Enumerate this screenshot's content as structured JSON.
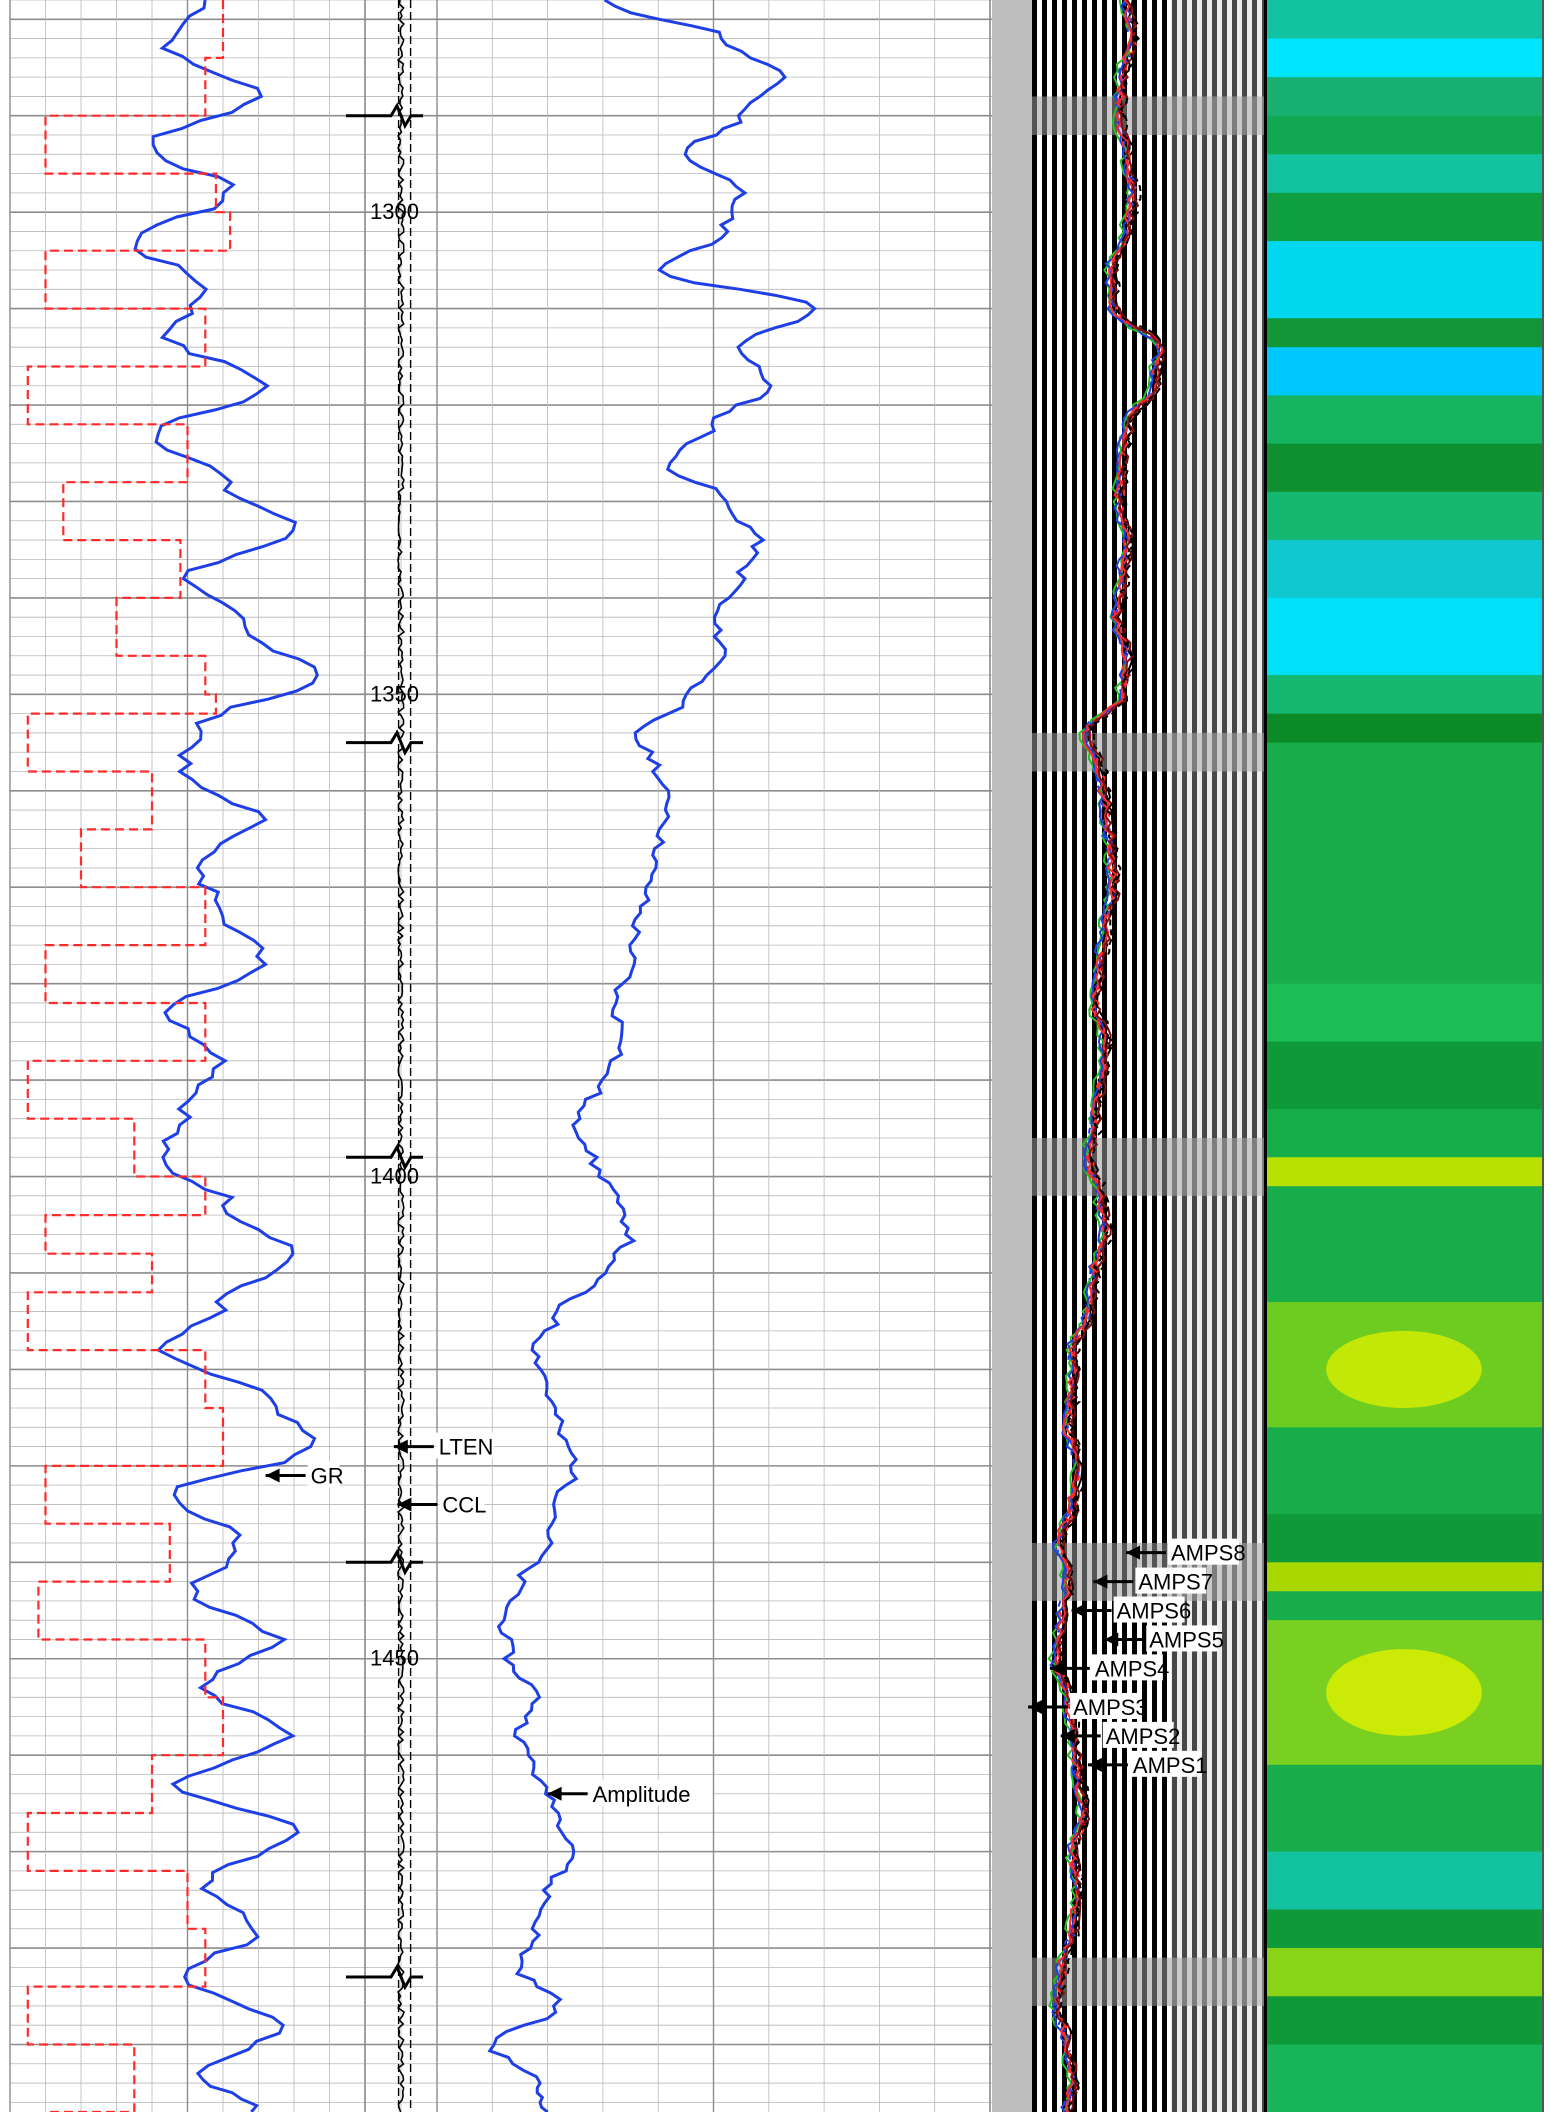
{
  "chart_data": {
    "type": "line",
    "title": "",
    "xlabel": "",
    "ylabel": "",
    "depth_ticks": [
      "1300",
      "1350",
      "1400",
      "1450"
    ],
    "depth_tick_values": [
      1300,
      1350,
      1400,
      1450
    ],
    "ylim": [
      1278,
      1497
    ],
    "grid": true,
    "tracks": [
      {
        "name": "track-1",
        "curves": [
          {
            "name": "GR",
            "color": "#1f3fe6",
            "style": "solid",
            "depths": [
              1278,
              1283,
              1288,
              1293,
              1298,
              1303,
              1308,
              1313,
              1318,
              1323,
              1328,
              1333,
              1338,
              1343,
              1348,
              1353,
              1358,
              1363,
              1368,
              1373,
              1378,
              1383,
              1388,
              1393,
              1398,
              1403,
              1408,
              1413,
              1418,
              1423,
              1428,
              1433,
              1438,
              1443,
              1448,
              1453,
              1458,
              1463,
              1468,
              1473,
              1478,
              1483,
              1488,
              1493,
              1497
            ],
            "values": [
              0.55,
              0.45,
              0.7,
              0.4,
              0.62,
              0.35,
              0.55,
              0.45,
              0.72,
              0.42,
              0.6,
              0.8,
              0.5,
              0.65,
              0.88,
              0.55,
              0.48,
              0.7,
              0.52,
              0.62,
              0.72,
              0.45,
              0.6,
              0.5,
              0.42,
              0.62,
              0.8,
              0.6,
              0.42,
              0.72,
              0.85,
              0.45,
              0.65,
              0.52,
              0.75,
              0.55,
              0.78,
              0.48,
              0.82,
              0.55,
              0.7,
              0.5,
              0.75,
              0.55,
              0.68
            ]
          },
          {
            "name": "",
            "color": "#ff2a2a",
            "style": "dashed",
            "depths": [
              1278,
              1284,
              1290,
              1296,
              1300,
              1304,
              1310,
              1316,
              1322,
              1328,
              1334,
              1340,
              1346,
              1350,
              1352,
              1358,
              1364,
              1370,
              1376,
              1382,
              1388,
              1394,
              1400,
              1404,
              1408,
              1412,
              1418,
              1424,
              1430,
              1436,
              1442,
              1448,
              1454,
              1460,
              1466,
              1472,
              1478,
              1484,
              1490,
              1497
            ],
            "values": [
              0.6,
              0.55,
              0.1,
              0.58,
              0.62,
              0.1,
              0.55,
              0.05,
              0.5,
              0.15,
              0.48,
              0.3,
              0.55,
              0.58,
              0.05,
              0.4,
              0.2,
              0.55,
              0.1,
              0.55,
              0.05,
              0.35,
              0.55,
              0.1,
              0.4,
              0.05,
              0.55,
              0.6,
              0.1,
              0.45,
              0.08,
              0.55,
              0.6,
              0.4,
              0.05,
              0.5,
              0.55,
              0.05,
              0.35,
              0.1
            ]
          }
        ]
      },
      {
        "name": "track-2",
        "curves": [
          {
            "name": "LTEN",
            "color": "#000000",
            "style": "dashed",
            "values": [
              0.55
            ]
          },
          {
            "name": "CCL",
            "color": "#000000",
            "style": "solid",
            "values": [
              0.5
            ],
            "collar_depths": [
              1290,
              1355,
              1398,
              1440,
              1483
            ]
          }
        ]
      },
      {
        "name": "track-3",
        "curves": [
          {
            "name": "Amplitude",
            "color": "#1f3fe6",
            "style": "solid",
            "depths": [
              1278,
              1282,
              1286,
              1290,
              1294,
              1298,
              1302,
              1306,
              1310,
              1314,
              1318,
              1322,
              1326,
              1330,
              1334,
              1338,
              1342,
              1346,
              1350,
              1354,
              1358,
              1362,
              1366,
              1370,
              1374,
              1378,
              1382,
              1386,
              1390,
              1394,
              1398,
              1402,
              1406,
              1410,
              1414,
              1418,
              1422,
              1426,
              1430,
              1434,
              1438,
              1442,
              1446,
              1450,
              1454,
              1458,
              1462,
              1466,
              1470,
              1474,
              1478,
              1482,
              1486,
              1490,
              1494,
              1497
            ],
            "values": [
              0.3,
              0.52,
              0.62,
              0.55,
              0.45,
              0.55,
              0.52,
              0.4,
              0.68,
              0.55,
              0.6,
              0.5,
              0.42,
              0.52,
              0.58,
              0.55,
              0.5,
              0.52,
              0.46,
              0.36,
              0.4,
              0.42,
              0.4,
              0.38,
              0.36,
              0.35,
              0.32,
              0.34,
              0.3,
              0.25,
              0.28,
              0.32,
              0.35,
              0.3,
              0.22,
              0.18,
              0.2,
              0.22,
              0.25,
              0.22,
              0.2,
              0.15,
              0.12,
              0.13,
              0.18,
              0.15,
              0.18,
              0.22,
              0.25,
              0.2,
              0.18,
              0.15,
              0.22,
              0.1,
              0.18,
              0.2
            ]
          }
        ]
      },
      {
        "name": "track-4",
        "curves": [
          {
            "name": "AMPS1",
            "color": "#000000",
            "style": "solid",
            "offset": 0.05
          },
          {
            "name": "AMPS2",
            "color": "#1f3fe6",
            "style": "dashed",
            "offset": 0.0
          },
          {
            "name": "AMPS3",
            "color": "#22c022",
            "style": "solid",
            "offset": -0.04
          },
          {
            "name": "AMPS4",
            "color": "#1f3fe6",
            "style": "solid",
            "offset": -0.02
          },
          {
            "name": "AMPS5",
            "color": "#ff2a2a",
            "style": "dashed",
            "offset": 0.03
          },
          {
            "name": "AMPS6",
            "color": "#ff2a2a",
            "style": "solid",
            "offset": 0.01
          },
          {
            "name": "AMPS7",
            "color": "#7a1010",
            "style": "solid",
            "offset": 0.06
          },
          {
            "name": "AMPS8",
            "color": "#000000",
            "style": "dashed",
            "offset": 0.08
          }
        ],
        "base_depths": [
          1278,
          1282,
          1286,
          1290,
          1294,
          1298,
          1302,
          1306,
          1310,
          1314,
          1318,
          1322,
          1326,
          1330,
          1334,
          1338,
          1342,
          1346,
          1350,
          1354,
          1358,
          1362,
          1366,
          1370,
          1374,
          1378,
          1382,
          1386,
          1390,
          1394,
          1398,
          1402,
          1406,
          1410,
          1414,
          1418,
          1422,
          1426,
          1430,
          1434,
          1438,
          1442,
          1446,
          1450,
          1454,
          1458,
          1462,
          1466,
          1470,
          1474,
          1478,
          1482,
          1486,
          1490,
          1494,
          1497
        ],
        "base_values": [
          0.5,
          0.52,
          0.48,
          0.47,
          0.5,
          0.52,
          0.5,
          0.44,
          0.45,
          0.62,
          0.6,
          0.5,
          0.48,
          0.47,
          0.5,
          0.48,
          0.46,
          0.5,
          0.48,
          0.35,
          0.4,
          0.42,
          0.44,
          0.45,
          0.42,
          0.4,
          0.38,
          0.42,
          0.4,
          0.38,
          0.36,
          0.4,
          0.42,
          0.38,
          0.36,
          0.3,
          0.3,
          0.28,
          0.32,
          0.3,
          0.25,
          0.28,
          0.26,
          0.24,
          0.28,
          0.3,
          0.32,
          0.34,
          0.3,
          0.32,
          0.3,
          0.26,
          0.24,
          0.28,
          0.3,
          0.28
        ]
      },
      {
        "name": "vdl-waveform",
        "type": "vdl",
        "noisy_depth_ranges": [
          [
            1288,
            1292
          ],
          [
            1354,
            1358
          ],
          [
            1396,
            1402
          ],
          [
            1438,
            1444
          ],
          [
            1481,
            1486
          ]
        ]
      },
      {
        "name": "cement-map",
        "type": "heatmap",
        "bands": [
          {
            "from": 1278,
            "to": 1282,
            "color": "#12c2a0"
          },
          {
            "from": 1282,
            "to": 1286,
            "color": "#00e5ff"
          },
          {
            "from": 1286,
            "to": 1290,
            "color": "#18b070"
          },
          {
            "from": 1290,
            "to": 1294,
            "color": "#10a850"
          },
          {
            "from": 1294,
            "to": 1298,
            "color": "#12c2a0"
          },
          {
            "from": 1298,
            "to": 1303,
            "color": "#0f9f40"
          },
          {
            "from": 1303,
            "to": 1311,
            "color": "#00d8f0"
          },
          {
            "from": 1311,
            "to": 1314,
            "color": "#139638"
          },
          {
            "from": 1314,
            "to": 1319,
            "color": "#00c8ff"
          },
          {
            "from": 1319,
            "to": 1324,
            "color": "#14b460"
          },
          {
            "from": 1324,
            "to": 1329,
            "color": "#0e8f30"
          },
          {
            "from": 1329,
            "to": 1334,
            "color": "#14b870"
          },
          {
            "from": 1334,
            "to": 1340,
            "color": "#10c8d0"
          },
          {
            "from": 1340,
            "to": 1348,
            "color": "#00e0f8"
          },
          {
            "from": 1348,
            "to": 1352,
            "color": "#14b870"
          },
          {
            "from": 1352,
            "to": 1355,
            "color": "#0b8a28"
          },
          {
            "from": 1355,
            "to": 1380,
            "color": "#16ad4a"
          },
          {
            "from": 1380,
            "to": 1386,
            "color": "#1cbf55"
          },
          {
            "from": 1386,
            "to": 1393,
            "color": "#0e9a38"
          },
          {
            "from": 1393,
            "to": 1398,
            "color": "#14ad48"
          },
          {
            "from": 1398,
            "to": 1401,
            "color": "#b8e000"
          },
          {
            "from": 1401,
            "to": 1413,
            "color": "#16ad4a"
          },
          {
            "from": 1413,
            "to": 1426,
            "color": "#6dcc20"
          },
          {
            "from": 1426,
            "to": 1435,
            "color": "#16ad4a"
          },
          {
            "from": 1435,
            "to": 1440,
            "color": "#0e9a38"
          },
          {
            "from": 1440,
            "to": 1443,
            "color": "#a8d800"
          },
          {
            "from": 1443,
            "to": 1446,
            "color": "#16ad4a"
          },
          {
            "from": 1446,
            "to": 1461,
            "color": "#7ad020"
          },
          {
            "from": 1461,
            "to": 1470,
            "color": "#16ad4a"
          },
          {
            "from": 1470,
            "to": 1476,
            "color": "#12c2a0"
          },
          {
            "from": 1476,
            "to": 1480,
            "color": "#0e9a38"
          },
          {
            "from": 1480,
            "to": 1485,
            "color": "#8ad418"
          },
          {
            "from": 1485,
            "to": 1490,
            "color": "#0e9a38"
          },
          {
            "from": 1490,
            "to": 1497,
            "color": "#18b45a"
          }
        ],
        "highlights": [
          {
            "from": 1416,
            "to": 1424,
            "color": "#d8ee00"
          },
          {
            "from": 1449,
            "to": 1458,
            "color": "#e0f000"
          }
        ]
      }
    ],
    "annotations": [
      {
        "text": "GR",
        "track": 0,
        "depth": 1431,
        "at": 0.72
      },
      {
        "text": "LTEN",
        "track": 1,
        "depth": 1428,
        "at": 0.4
      },
      {
        "text": "CCL",
        "track": 1,
        "depth": 1434,
        "at": 0.45
      },
      {
        "text": "Amplitude",
        "track": 2,
        "depth": 1464,
        "at": 0.2
      },
      {
        "text": "AMPS8",
        "track": 3,
        "depth": 1439,
        "at": 0.5
      },
      {
        "text": "AMPS7",
        "track": 3,
        "depth": 1442,
        "at": 0.38
      },
      {
        "text": "AMPS6",
        "track": 3,
        "depth": 1445,
        "at": 0.3
      },
      {
        "text": "AMPS5",
        "track": 3,
        "depth": 1448,
        "at": 0.42
      },
      {
        "text": "AMPS4",
        "track": 3,
        "depth": 1451,
        "at": 0.22
      },
      {
        "text": "AMPS3",
        "track": 3,
        "depth": 1455,
        "at": 0.14
      },
      {
        "text": "AMPS2",
        "track": 3,
        "depth": 1458,
        "at": 0.26
      },
      {
        "text": "AMPS1",
        "track": 3,
        "depth": 1461,
        "at": 0.36
      }
    ]
  },
  "colors": {
    "grid_minor": "#b8b8b8",
    "grid_major": "#8c8c8c",
    "vdl_gap": "#bdbdbd",
    "frame": "#555555"
  }
}
